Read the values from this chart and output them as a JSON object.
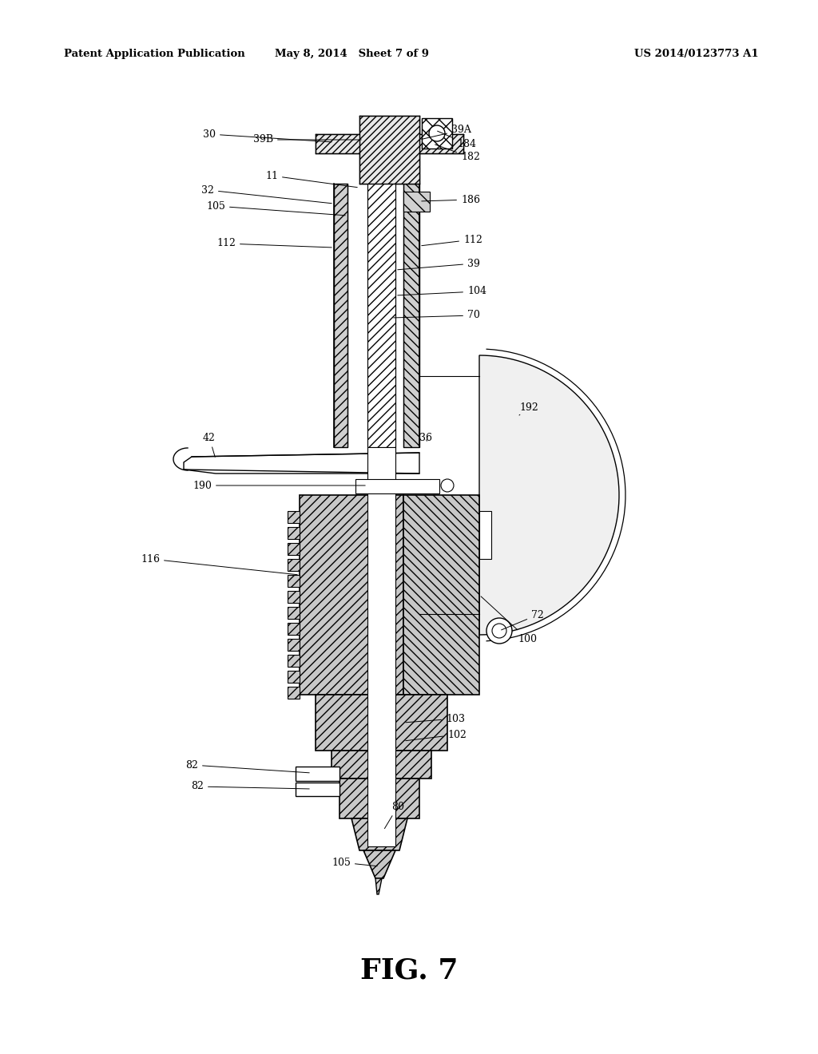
{
  "header_left": "Patent Application Publication",
  "header_mid": "May 8, 2014   Sheet 7 of 9",
  "header_right": "US 2014/0123773 A1",
  "figure_label": "FIG. 7",
  "background_color": "#ffffff",
  "line_color": "#000000"
}
